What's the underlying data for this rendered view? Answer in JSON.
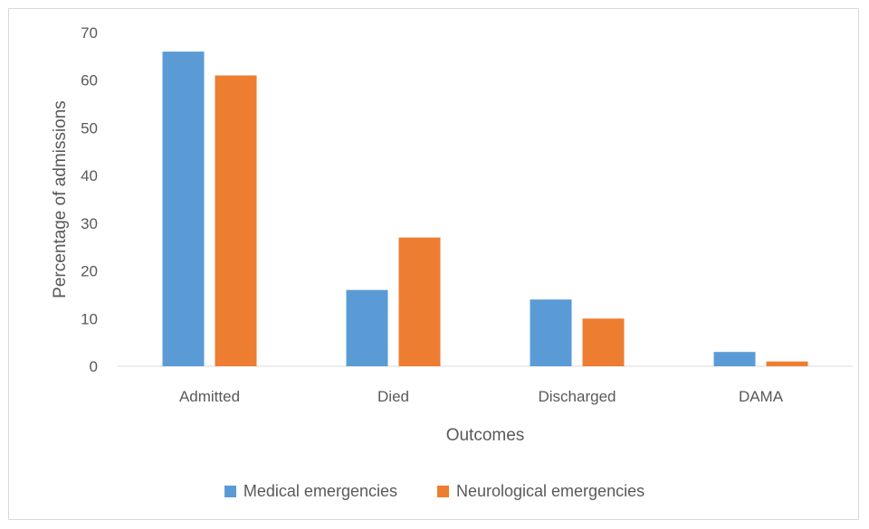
{
  "chart_data": {
    "type": "bar",
    "title": "",
    "xlabel": "Outcomes",
    "ylabel": "Percentage of admissions",
    "categories": [
      "Admitted",
      "Died",
      "Discharged",
      "DAMA"
    ],
    "series": [
      {
        "name": "Medical emergencies",
        "color": "#5b9bd5",
        "values": [
          66,
          16,
          14,
          3
        ]
      },
      {
        "name": "Neurological emergencies",
        "color": "#ed7d31",
        "values": [
          61,
          27,
          10,
          1
        ]
      }
    ],
    "ylim": [
      0,
      70
    ],
    "yticks": [
      0,
      10,
      20,
      30,
      40,
      50,
      60,
      70
    ],
    "grid": false,
    "legend_position": "bottom"
  }
}
